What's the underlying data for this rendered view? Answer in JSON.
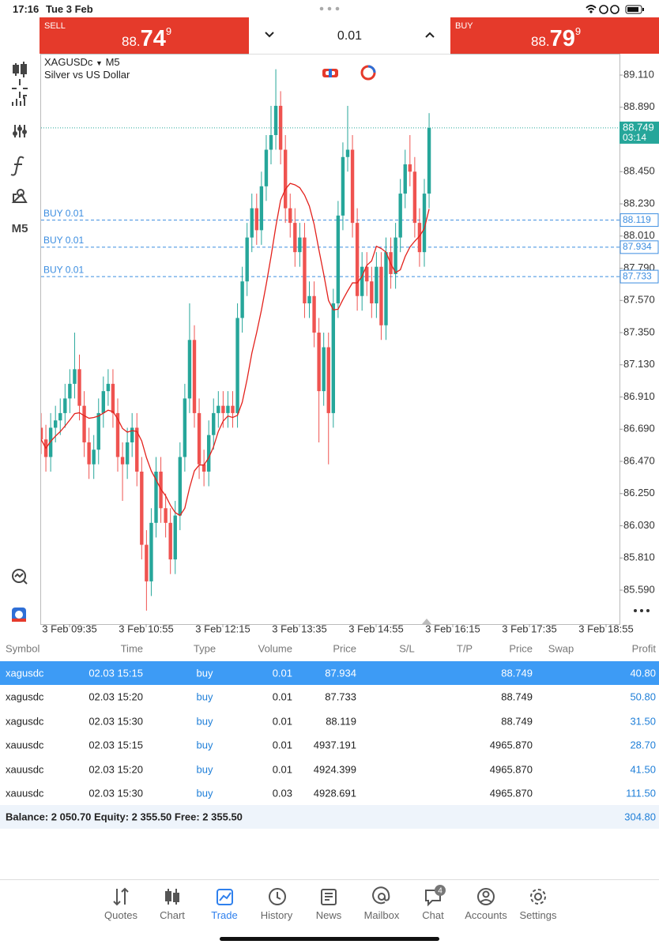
{
  "status_bar": {
    "time": "17:16",
    "date": "Tue 3 Feb"
  },
  "trade_panel": {
    "sell_label": "SELL",
    "sell_big": "88.",
    "sell_main": "74",
    "sell_small": "9",
    "volume": "0.01",
    "buy_label": "BUY",
    "buy_big": "88.",
    "buy_main": "79",
    "buy_small": "9"
  },
  "chart_data": {
    "type": "candlestick",
    "symbol": "XAGUSDc",
    "timeframe": "M5",
    "description": "Silver vs US Dollar",
    "ylim": [
      85.358,
      89.256
    ],
    "yticks": [
      {
        "value": 89.11,
        "label": "89.110"
      },
      {
        "value": 88.89,
        "label": "88.890"
      },
      {
        "value": 88.67,
        "label": "88.670"
      },
      {
        "value": 88.45,
        "label": "88.450"
      },
      {
        "value": 88.23,
        "label": "88.230"
      },
      {
        "value": 88.01,
        "label": "88.010"
      },
      {
        "value": 87.79,
        "label": "87.790"
      },
      {
        "value": 87.57,
        "label": "87.570"
      },
      {
        "value": 87.35,
        "label": "87.350"
      },
      {
        "value": 87.13,
        "label": "87.130"
      },
      {
        "value": 86.91,
        "label": "86.910"
      },
      {
        "value": 86.69,
        "label": "86.690"
      },
      {
        "value": 86.47,
        "label": "86.470"
      },
      {
        "value": 86.25,
        "label": "86.250"
      },
      {
        "value": 86.03,
        "label": "86.030"
      },
      {
        "value": 85.81,
        "label": "85.810"
      },
      {
        "value": 85.59,
        "label": "85.590"
      }
    ],
    "xtick_labels": [
      "3 Feb 09:35",
      "3 Feb 10:55",
      "3 Feb 12:15",
      "3 Feb 13:35",
      "3 Feb 14:55",
      "3 Feb 16:15",
      "3 Feb 17:35",
      "3 Feb 18:55"
    ],
    "current_price": {
      "value": 88.749,
      "label": "88.749"
    },
    "countdown": "03:14",
    "orders": [
      {
        "label": "BUY 0.01",
        "price": {
          "value": 88.119,
          "label": "88.119"
        }
      },
      {
        "label": "BUY 0.01",
        "price": {
          "value": 87.934,
          "label": "87.934"
        }
      },
      {
        "label": "BUY 0.01",
        "price": {
          "value": 87.733,
          "label": "87.733"
        }
      }
    ],
    "up_color": "#26a69a",
    "down_color": "#ef5350",
    "ma_color": "#e3211c",
    "open": [
      86.7,
      86.62,
      86.5,
      86.7,
      86.75,
      86.8,
      86.9,
      87.0,
      87.1,
      86.85,
      86.6,
      86.45,
      86.55,
      86.8,
      86.95,
      87.0,
      86.8,
      86.5,
      86.45,
      86.6,
      86.7,
      86.4,
      85.9,
      85.65,
      86.05,
      86.4,
      86.15,
      86.05,
      85.8,
      86.1,
      86.5,
      86.9,
      87.3,
      86.8,
      86.45,
      86.4,
      86.65,
      86.8,
      86.85,
      86.8,
      86.85,
      86.8,
      87.45,
      87.7,
      88.0,
      88.2,
      88.05,
      88.35,
      88.6,
      88.7,
      88.9,
      88.6,
      88.2,
      88.1,
      87.9,
      88.0,
      87.55,
      87.6,
      87.35,
      86.95,
      87.25,
      86.8,
      87.55,
      88.15,
      88.55,
      88.6,
      88.1,
      87.6,
      87.8,
      87.7,
      87.55,
      87.8,
      87.4,
      87.9,
      87.75,
      88.0,
      88.3,
      88.5,
      88.45,
      88.1,
      87.9,
      88.3
    ],
    "high": [
      86.8,
      86.72,
      86.8,
      86.85,
      86.9,
      87.0,
      87.1,
      87.35,
      87.2,
      86.95,
      86.7,
      86.65,
      86.9,
      87.05,
      87.1,
      87.1,
      86.9,
      86.6,
      86.7,
      86.8,
      86.8,
      86.5,
      86.0,
      86.15,
      86.5,
      86.5,
      86.25,
      86.15,
      86.2,
      86.6,
      87.0,
      87.55,
      87.4,
      86.9,
      86.55,
      86.75,
      86.9,
      86.95,
      86.95,
      86.95,
      86.95,
      87.55,
      87.8,
      88.1,
      88.3,
      88.3,
      88.45,
      88.7,
      88.9,
      89.15,
      89.0,
      88.7,
      88.3,
      88.2,
      88.1,
      88.1,
      87.7,
      87.7,
      87.45,
      87.35,
      87.35,
      87.65,
      88.25,
      88.65,
      88.9,
      88.7,
      88.2,
      87.9,
      87.9,
      87.8,
      87.9,
      87.9,
      88.0,
      88.0,
      88.1,
      88.4,
      88.6,
      88.7,
      88.55,
      88.2,
      88.4,
      88.85
    ],
    "low": [
      86.52,
      86.4,
      86.4,
      86.6,
      86.65,
      86.7,
      86.8,
      86.9,
      86.75,
      86.5,
      86.35,
      86.35,
      86.45,
      86.7,
      86.85,
      86.7,
      86.4,
      86.2,
      86.35,
      86.5,
      86.3,
      85.8,
      85.45,
      85.55,
      85.95,
      86.05,
      85.95,
      85.7,
      85.7,
      86.0,
      86.4,
      86.8,
      86.7,
      86.35,
      86.3,
      86.3,
      86.55,
      86.7,
      86.7,
      86.7,
      86.7,
      86.7,
      87.35,
      87.6,
      87.9,
      87.95,
      87.95,
      88.25,
      88.5,
      88.6,
      88.5,
      88.1,
      88.0,
      87.8,
      87.8,
      87.45,
      87.45,
      87.25,
      86.6,
      86.85,
      86.45,
      86.7,
      87.45,
      88.05,
      88.45,
      88.0,
      87.5,
      87.5,
      87.6,
      87.45,
      87.45,
      87.3,
      87.3,
      87.65,
      87.65,
      87.9,
      88.2,
      88.35,
      88.0,
      87.8,
      87.8,
      88.2
    ],
    "close": [
      86.62,
      86.5,
      86.7,
      86.75,
      86.8,
      86.9,
      87.0,
      87.1,
      86.85,
      86.6,
      86.45,
      86.55,
      86.8,
      86.95,
      87.0,
      86.8,
      86.5,
      86.45,
      86.6,
      86.7,
      86.4,
      85.9,
      85.65,
      86.05,
      86.4,
      86.15,
      86.05,
      85.8,
      86.1,
      86.5,
      86.9,
      87.3,
      86.8,
      86.45,
      86.4,
      86.65,
      86.8,
      86.85,
      86.8,
      86.85,
      86.8,
      87.45,
      87.7,
      88.0,
      88.2,
      88.05,
      88.35,
      88.6,
      88.7,
      88.9,
      88.6,
      88.2,
      88.1,
      87.9,
      88.0,
      87.55,
      87.6,
      87.35,
      86.95,
      87.25,
      86.8,
      87.55,
      88.15,
      88.55,
      88.6,
      88.1,
      87.6,
      87.8,
      87.7,
      87.55,
      87.8,
      87.4,
      87.9,
      87.75,
      88.0,
      88.3,
      88.5,
      88.45,
      88.1,
      87.9,
      88.3,
      88.749
    ]
  },
  "table": {
    "columns": [
      "Symbol",
      "Time",
      "Type",
      "Volume",
      "Price",
      "S/L",
      "T/P",
      "Price",
      "Swap",
      "Profit"
    ],
    "rows": [
      {
        "symbol": "xagusdc",
        "time": "02.03 15:15",
        "type": "buy",
        "volume": "0.01",
        "price": "87.934",
        "current": "88.749",
        "profit": "40.80"
      },
      {
        "symbol": "xagusdc",
        "time": "02.03 15:20",
        "type": "buy",
        "volume": "0.01",
        "price": "87.733",
        "current": "88.749",
        "profit": "50.80"
      },
      {
        "symbol": "xagusdc",
        "time": "02.03 15:30",
        "type": "buy",
        "volume": "0.01",
        "price": "88.119",
        "current": "88.749",
        "profit": "31.50"
      },
      {
        "symbol": "xauusdc",
        "time": "02.03 15:15",
        "type": "buy",
        "volume": "0.01",
        "price": "4937.191",
        "current": "4965.870",
        "profit": "28.70"
      },
      {
        "symbol": "xauusdc",
        "time": "02.03 15:20",
        "type": "buy",
        "volume": "0.01",
        "price": "4924.399",
        "current": "4965.870",
        "profit": "41.50"
      },
      {
        "symbol": "xauusdc",
        "time": "02.03 15:30",
        "type": "buy",
        "volume": "0.03",
        "price": "4928.691",
        "current": "4965.870",
        "profit": "111.50"
      }
    ],
    "summary": "Balance: 2 050.70 Equity: 2 355.50 Free: 2 355.50",
    "total_profit": "304.80"
  },
  "nav": {
    "items": [
      "Quotes",
      "Chart",
      "Trade",
      "History",
      "News",
      "Mailbox",
      "Chat",
      "Accounts",
      "Settings"
    ],
    "active": 2,
    "chat_badge": "4"
  }
}
